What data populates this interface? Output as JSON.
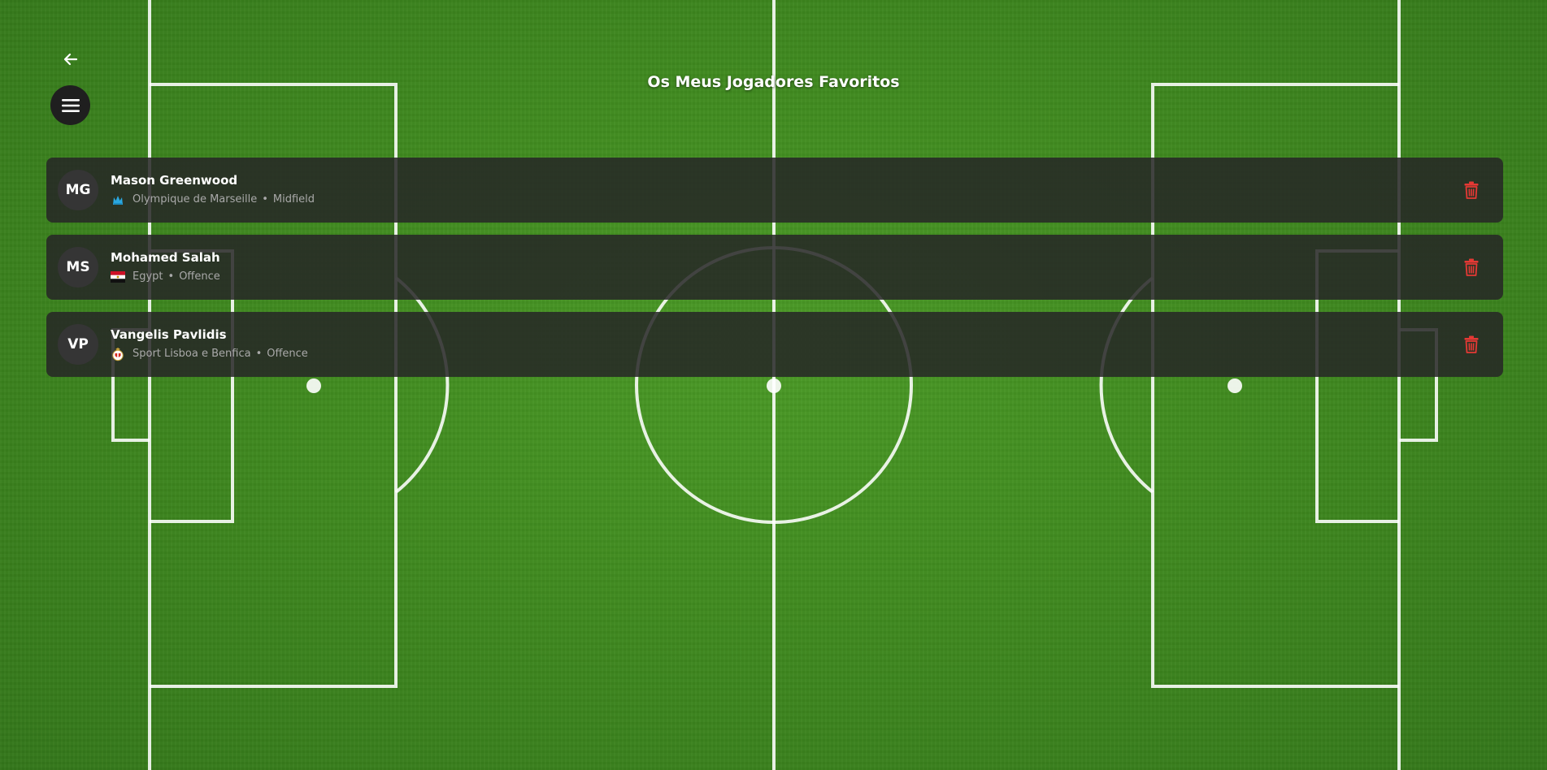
{
  "page": {
    "title": "Os Meus Jogadores Favoritos"
  },
  "navigation": {
    "back_icon": "arrow-left-icon",
    "menu_icon": "hamburger-menu-icon"
  },
  "colors": {
    "card_background": "#262626",
    "avatar_background": "#353535",
    "delete_icon": "#e53935",
    "name_text": "#ffffff",
    "meta_text": "#a9a9a9"
  },
  "players": [
    {
      "initials": "MG",
      "name": "Mason Greenwood",
      "team": "Olympique de Marseille",
      "position": "Midfield",
      "team_icon": "olympique-de-marseille-crest-icon",
      "delete_icon": "trash-icon"
    },
    {
      "initials": "MS",
      "name": "Mohamed Salah",
      "team": "Egypt",
      "position": "Offence",
      "team_icon": "egypt-flag-icon",
      "delete_icon": "trash-icon"
    },
    {
      "initials": "VP",
      "name": "Vangelis Pavlidis",
      "team": "Sport Lisboa e Benfica",
      "position": "Offence",
      "team_icon": "benfica-crest-icon",
      "delete_icon": "trash-icon"
    }
  ]
}
